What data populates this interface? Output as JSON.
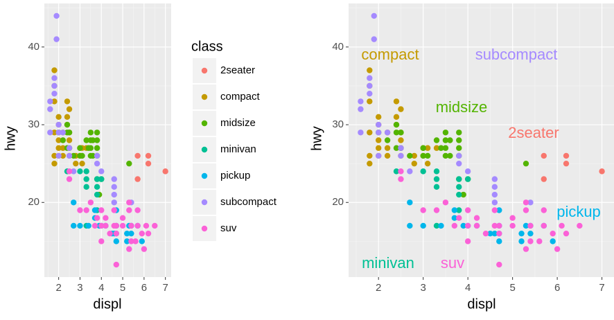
{
  "chart_data": [
    {
      "type": "scatter",
      "x_label": "displ",
      "y_label": "hwy",
      "legend_title": "class",
      "xlim": [
        1.33,
        7.27
      ],
      "ylim": [
        10.4,
        45.6
      ],
      "xticks": [
        2,
        3,
        4,
        5,
        6,
        7
      ],
      "yticks": [
        20,
        30,
        40
      ],
      "grid": true,
      "legend": "right",
      "series": [
        {
          "name": "2seater",
          "color": "#F8766D",
          "x": [
            5.7,
            5.7,
            6.2,
            6.2,
            7.0
          ],
          "values": [
            26,
            23,
            26,
            25,
            24
          ]
        },
        {
          "name": "compact",
          "color": "#C49A00",
          "x": [
            1.8,
            1.8,
            2.0,
            2.0,
            2.8,
            3.1,
            1.8,
            2.0,
            2.0,
            2.8,
            3.1,
            2.2,
            2.2,
            2.4,
            3.0,
            3.3,
            2.5,
            2.5,
            1.8,
            1.8,
            1.8,
            2.4,
            2.4,
            2.5,
            2.5,
            2.2,
            2.5,
            3.0,
            2.0
          ],
          "values": [
            29,
            26,
            31,
            30,
            26,
            27,
            25,
            28,
            27,
            25,
            25,
            26,
            27,
            31,
            26,
            27,
            28,
            29,
            33,
            35,
            37,
            30,
            33,
            32,
            27,
            29,
            26,
            27,
            26
          ]
        },
        {
          "name": "midsize",
          "color": "#53B400",
          "x": [
            2.4,
            2.4,
            3.1,
            3.5,
            3.6,
            3.0,
            3.5,
            3.3,
            3.8,
            3.8,
            3.8,
            5.3,
            2.5,
            2.5,
            3.5,
            4.0,
            2.4,
            3.5,
            3.0,
            2.7,
            3.8,
            3.6,
            2.0,
            2.2,
            3.4,
            3.8,
            3.9
          ],
          "values": [
            27,
            30,
            26,
            29,
            26,
            26,
            26,
            28,
            27,
            26,
            28,
            25,
            29,
            27,
            27,
            23,
            29,
            28,
            27,
            26,
            23,
            28,
            29,
            28,
            27,
            29,
            21
          ]
        },
        {
          "name": "minivan",
          "color": "#00C094",
          "x": [
            2.4,
            3.0,
            3.3,
            3.3,
            3.3,
            3.8,
            3.8,
            3.8,
            4.0,
            3.8,
            3.3
          ],
          "values": [
            24,
            24,
            22,
            24,
            17,
            22,
            21,
            23,
            23,
            19,
            23
          ]
        },
        {
          "name": "pickup",
          "color": "#00B6EB",
          "x": [
            2.7,
            2.7,
            3.0,
            3.7,
            3.7,
            3.9,
            4.7,
            4.7,
            4.7,
            5.2,
            5.7,
            5.9,
            4.2,
            4.6,
            5.4,
            5.4,
            4.0,
            4.7,
            5.2,
            5.3,
            3.4,
            4.5
          ],
          "values": [
            20,
            17,
            17,
            19,
            18,
            17,
            17,
            16,
            15,
            15,
            17,
            15,
            17,
            16,
            17,
            16,
            17,
            19,
            16,
            17,
            17,
            16
          ]
        },
        {
          "name": "subcompact",
          "color": "#A58AFF",
          "x": [
            1.6,
            1.6,
            1.6,
            1.8,
            1.8,
            1.9,
            1.9,
            2.0,
            2.0,
            2.5,
            2.5,
            3.8,
            3.8,
            4.0,
            4.6,
            4.6,
            4.6,
            5.4,
            2.0,
            2.7,
            2.2,
            1.8,
            4.6
          ],
          "values": [
            29,
            32,
            33,
            34,
            36,
            44,
            41,
            29,
            26,
            27,
            26,
            26,
            25,
            24,
            23,
            22,
            21,
            20,
            30,
            24,
            29,
            35,
            20
          ]
        },
        {
          "name": "suv",
          "color": "#FB61D7",
          "x": [
            2.5,
            2.5,
            3.5,
            3.7,
            4.0,
            4.7,
            5.7,
            6.5,
            4.0,
            4.2,
            4.6,
            5.4,
            5.4,
            5.3,
            6.0,
            5.3,
            5.3,
            5.7,
            6.1,
            6.2,
            3.0,
            4.2,
            4.6,
            4.7,
            4.0,
            5.0,
            4.4,
            3.3,
            3.8,
            4.7,
            5.6,
            5.0,
            5.9
          ],
          "values": [
            24,
            23,
            20,
            17,
            17,
            17,
            17,
            17,
            19,
            18,
            17,
            17,
            15,
            14,
            14,
            19,
            20,
            19,
            17,
            16,
            19,
            17,
            19,
            12,
            15,
            17,
            16,
            19,
            18,
            16,
            15,
            18,
            16
          ]
        }
      ]
    },
    {
      "type": "scatter",
      "x_label": "displ",
      "y_label": "hwy",
      "xlim": [
        1.33,
        7.27
      ],
      "ylim": [
        10.4,
        45.6
      ],
      "xticks": [
        2,
        3,
        4,
        5,
        6,
        7
      ],
      "yticks": [
        20,
        30,
        40
      ],
      "grid": true
    }
  ]
}
